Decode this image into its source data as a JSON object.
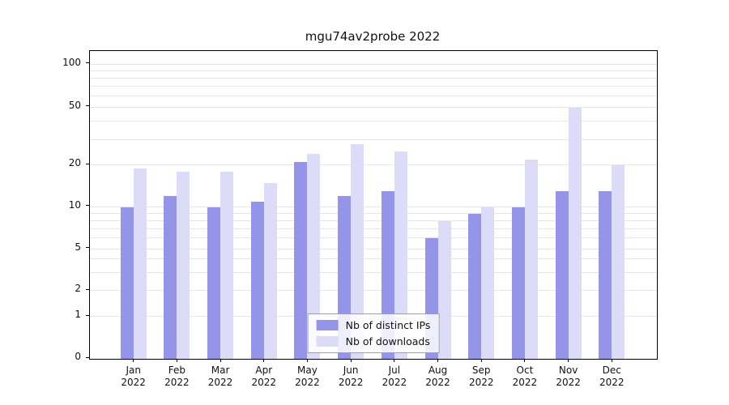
{
  "chart_data": {
    "type": "bar",
    "title": "mgu74av2probe 2022",
    "x": [
      "Jan",
      "Feb",
      "Mar",
      "Apr",
      "May",
      "Jun",
      "Jul",
      "Aug",
      "Sep",
      "Oct",
      "Nov",
      "Dec"
    ],
    "x_year": "2022",
    "series": [
      {
        "name": "Nb of distinct IPs",
        "color": "#9494e8",
        "values": [
          10,
          12,
          10,
          11,
          21,
          12,
          13,
          6,
          9,
          10,
          13,
          13
        ]
      },
      {
        "name": "Nb of downloads",
        "color": "#dcdcf8",
        "values": [
          19,
          18,
          18,
          15,
          24,
          28,
          25,
          8,
          10,
          22,
          50,
          20
        ]
      }
    ],
    "yticks": [
      0,
      1,
      2,
      5,
      10,
      20,
      50,
      100
    ],
    "yscale": "log-with-zero-baseline",
    "ylim": [
      0,
      100
    ],
    "grid": true,
    "legend_position": "bottom-center"
  }
}
